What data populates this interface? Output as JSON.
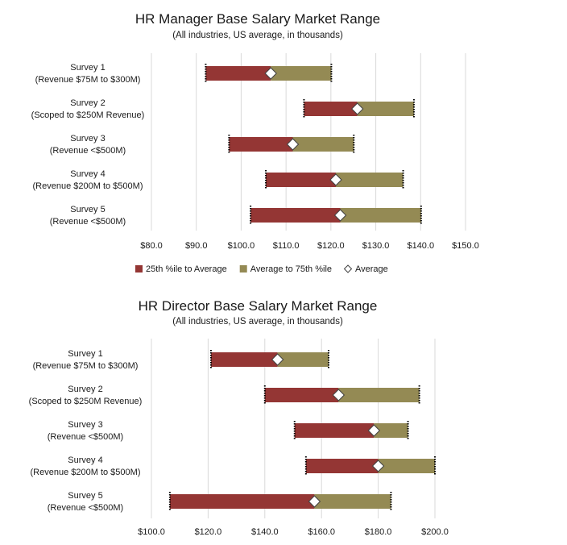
{
  "colors": {
    "low": "#943634",
    "high": "#948a54",
    "grid": "#d9d9d9",
    "marker_fill": "#ffffff",
    "marker_stroke": "#404040"
  },
  "chart_data": [
    {
      "type": "bar",
      "subtype": "floating-stacked-horizontal",
      "title": "HR Manager Base Salary Market Range",
      "subtitle": "(All industries, US average,  in thousands)",
      "categories": [
        [
          "Survey 1",
          "(Revenue $75M to $300M)"
        ],
        [
          "Survey 2",
          "(Scoped to $250M Revenue)"
        ],
        [
          "Survey 3",
          "(Revenue <$500M)"
        ],
        [
          "Survey 4",
          "(Revenue $200M to $500M)"
        ],
        [
          "Survey 5",
          "(Revenue <$500M)"
        ]
      ],
      "p25": [
        92.1,
        114.0,
        97.3,
        105.5,
        102.1
      ],
      "average": [
        106.6,
        125.9,
        111.5,
        121.1,
        122.1
      ],
      "p75": [
        120.1,
        138.5,
        125.1,
        136.1,
        140.1
      ],
      "x_ticks": [
        "$80.0",
        "$90.0",
        "$100.0",
        "$110.0",
        "$120.0",
        "$130.0",
        "$140.0",
        "$150.0"
      ],
      "xlim": [
        80,
        150
      ],
      "series": [
        {
          "name": "25th %ile to Average"
        },
        {
          "name": "Average to 75th %ile"
        },
        {
          "name": "Average"
        }
      ],
      "legend_position": "bottom",
      "grid": true
    },
    {
      "type": "bar",
      "subtype": "floating-stacked-horizontal",
      "title": "HR Director Base Salary Market Range",
      "subtitle": "(All industries, US average,  in thousands)",
      "categories": [
        [
          "Survey 1",
          "(Revenue $75M to $300M)"
        ],
        [
          "Survey 2",
          "(Scoped to $250M Revenue)"
        ],
        [
          "Survey 3",
          "(Revenue <$500M)"
        ],
        [
          "Survey 4",
          "(Revenue $200M to $500M)"
        ],
        [
          "Survey 5",
          "(Revenue <$500M)"
        ]
      ],
      "p25": [
        121.0,
        140.0,
        150.5,
        154.5,
        106.5
      ],
      "average": [
        144.5,
        166.0,
        178.5,
        180.0,
        157.5
      ],
      "p75": [
        162.5,
        194.5,
        190.5,
        200.0,
        184.5
      ],
      "x_ticks": [
        "$100.0",
        "$120.0",
        "$140.0",
        "$160.0",
        "$180.0",
        "$200.0"
      ],
      "xlim": [
        100,
        200
      ],
      "grid": true
    }
  ]
}
